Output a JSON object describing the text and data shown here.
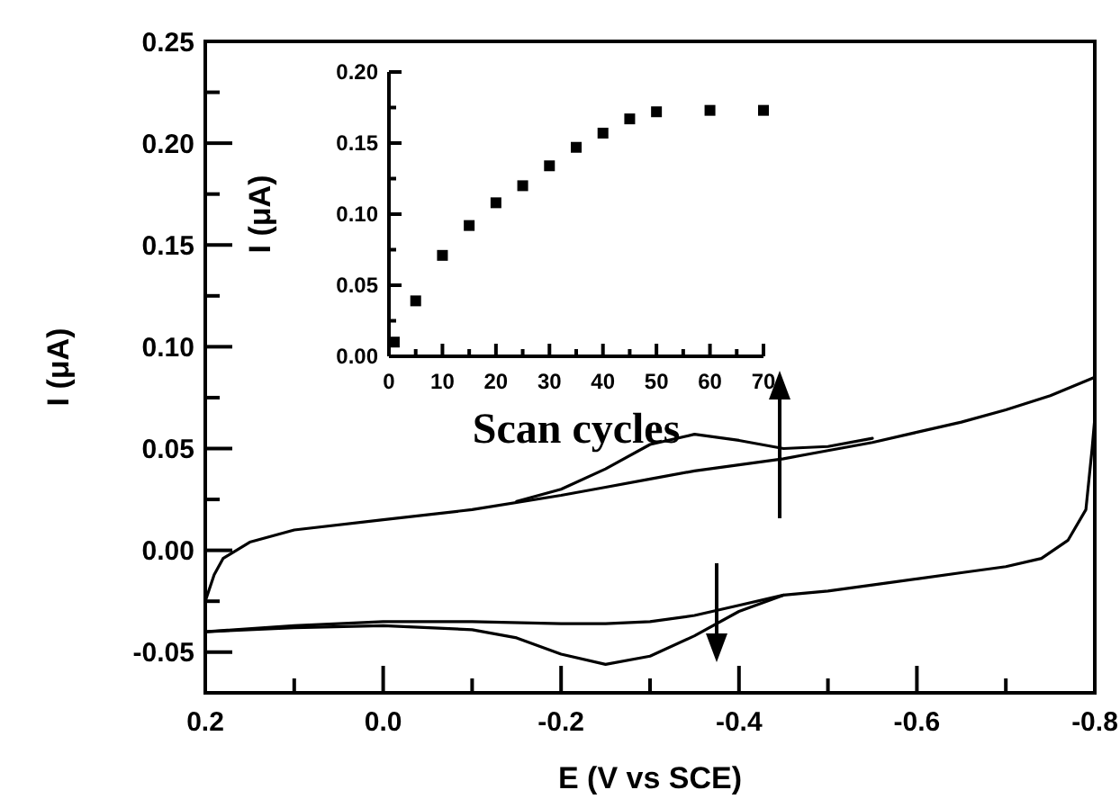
{
  "chart_data": [
    {
      "type": "line",
      "xlabel": "E (V vs SCE)",
      "ylabel": "I (μA)",
      "xlim": [
        0.2,
        -0.8
      ],
      "ylim": [
        -0.07,
        0.25
      ],
      "xticks": [
        0.2,
        {
          "value": 0.1,
          "label": null
        },
        {
          "value": 0.0,
          "label": "0.0"
        },
        {
          "value": -0.1,
          "label": null
        },
        -0.2,
        {
          "value": -0.3,
          "label": null
        },
        -0.4,
        {
          "value": -0.5,
          "label": null
        },
        -0.6,
        {
          "value": -0.7,
          "label": null
        },
        -0.8
      ],
      "yticks": [
        {
          "value": -0.05,
          "label": "-0.05"
        },
        {
          "value": -0.025,
          "label": null
        },
        {
          "value": 0,
          "label": "0.00"
        },
        {
          "value": 0.025,
          "label": null
        },
        0.05,
        {
          "value": 0.075,
          "label": null
        },
        {
          "value": 0.1,
          "label": "0.10"
        },
        {
          "value": 0.125,
          "label": null
        },
        0.15,
        {
          "value": 0.175,
          "label": null
        },
        {
          "value": 0.2,
          "label": "0.20"
        },
        {
          "value": 0.225,
          "label": null
        },
        0.25
      ],
      "marker": "none",
      "series": [
        {
          "color": "#000000",
          "x": [
            0.2,
            0.19,
            0.18,
            0.15,
            0.1,
            0.0,
            -0.1,
            -0.2,
            -0.25,
            -0.3,
            -0.35,
            -0.4,
            -0.45,
            -0.5,
            -0.55,
            -0.6,
            -0.65,
            -0.7,
            -0.75,
            -0.8
          ],
          "values": [
            -0.025,
            -0.012,
            -0.004,
            0.004,
            0.01,
            0.015,
            0.02,
            0.027,
            0.031,
            0.035,
            0.039,
            0.042,
            0.045,
            0.049,
            0.053,
            0.058,
            0.063,
            0.069,
            0.076,
            0.085
          ]
        },
        {
          "color": "#000000",
          "x": [
            -0.15,
            -0.2,
            -0.25,
            -0.3,
            -0.35,
            -0.4,
            -0.45,
            -0.5,
            -0.55
          ],
          "values": [
            0.024,
            0.03,
            0.04,
            0.052,
            0.057,
            0.054,
            0.05,
            0.051,
            0.055
          ]
        },
        {
          "color": "#000000",
          "x": [
            -0.8,
            -0.797,
            -0.79,
            -0.77,
            -0.74,
            -0.7,
            -0.65,
            -0.6,
            -0.55,
            -0.5,
            -0.45,
            -0.4,
            -0.35,
            -0.3,
            -0.25,
            -0.2,
            -0.1,
            0.0,
            0.1,
            0.2
          ],
          "values": [
            0.065,
            0.05,
            0.02,
            0.005,
            -0.004,
            -0.008,
            -0.011,
            -0.014,
            -0.017,
            -0.02,
            -0.022,
            -0.027,
            -0.032,
            -0.035,
            -0.036,
            -0.036,
            -0.035,
            -0.035,
            -0.037,
            -0.04
          ]
        },
        {
          "color": "#000000",
          "x": [
            -0.45,
            -0.4,
            -0.35,
            -0.3,
            -0.25,
            -0.2,
            -0.15,
            -0.1,
            0.0,
            0.1,
            0.2
          ],
          "values": [
            -0.022,
            -0.03,
            -0.042,
            -0.052,
            -0.056,
            -0.051,
            -0.043,
            -0.039,
            -0.037,
            -0.038,
            -0.04
          ]
        }
      ]
    },
    {
      "type": "scatter",
      "xlabel": "Scan cycles",
      "ylabel": "I (μA)",
      "xlim": [
        0,
        70
      ],
      "ylim": [
        0,
        0.2
      ],
      "xticks": [
        0,
        {
          "value": 5,
          "label": null
        },
        10,
        {
          "value": 15,
          "label": null
        },
        20,
        {
          "value": 25,
          "label": null
        },
        30,
        {
          "value": 35,
          "label": null
        },
        40,
        {
          "value": 45,
          "label": null
        },
        50,
        {
          "value": 55,
          "label": null
        },
        60,
        {
          "value": 65,
          "label": null
        },
        70
      ],
      "yticks": [
        {
          "value": 0,
          "label": "0.00"
        },
        {
          "value": 0.025,
          "label": null
        },
        0.05,
        {
          "value": 0.075,
          "label": null
        },
        {
          "value": 0.1,
          "label": "0.10"
        },
        {
          "value": 0.125,
          "label": null
        },
        0.15,
        {
          "value": 0.175,
          "label": null
        },
        {
          "value": 0.2,
          "label": "0.20"
        }
      ],
      "marker": "square",
      "series": [
        {
          "color": "#000000",
          "x": [
            1,
            5,
            10,
            15,
            20,
            25,
            30,
            35,
            40,
            45,
            50,
            60,
            70
          ],
          "values": [
            0.01,
            0.039,
            0.071,
            0.092,
            0.108,
            0.12,
            0.134,
            0.147,
            0.157,
            0.167,
            0.172,
            0.173,
            0.173
          ]
        }
      ]
    }
  ]
}
